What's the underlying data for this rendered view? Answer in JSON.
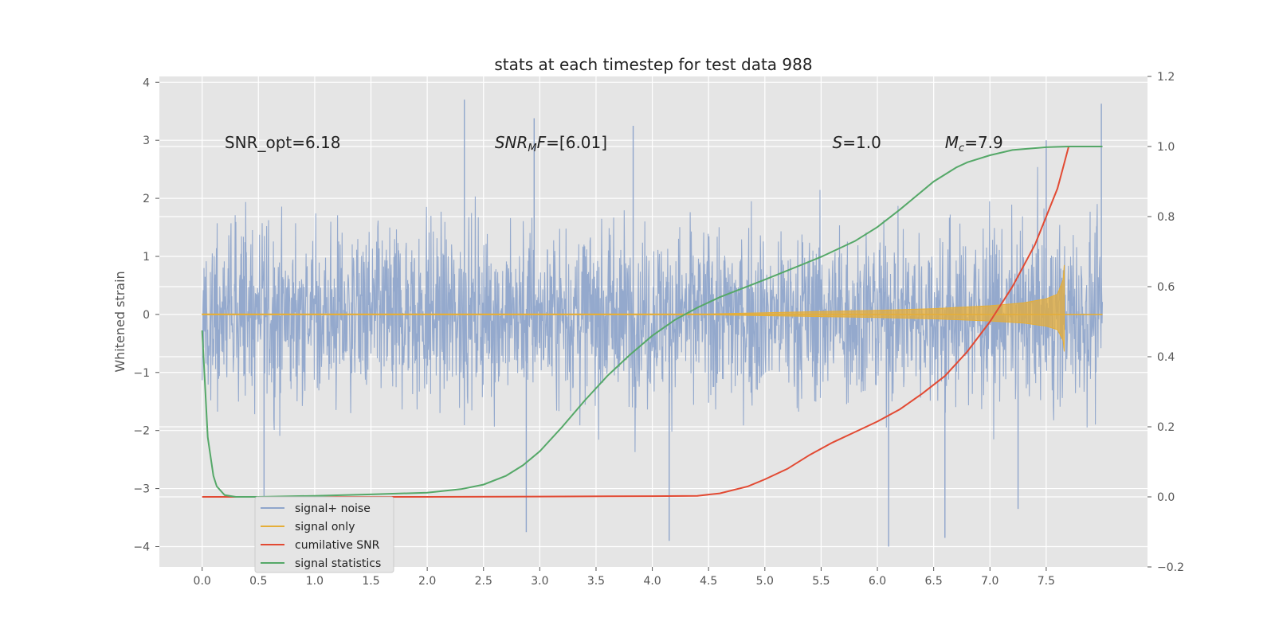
{
  "chart_data": {
    "type": "line",
    "title": "stats at each timestep for test data 988",
    "ylabel": "Whitened strain",
    "ylabel_right": "",
    "xlabel": "",
    "xlim": [
      -0.38,
      8.4
    ],
    "ylim_left": [
      -4.35,
      4.1
    ],
    "ylim_right": [
      -0.2,
      1.2
    ],
    "x_ticks": [
      0.0,
      0.5,
      1.0,
      1.5,
      2.0,
      2.5,
      3.0,
      3.5,
      4.0,
      4.5,
      5.0,
      5.5,
      6.0,
      6.5,
      7.0,
      7.5
    ],
    "x_tick_labels": [
      "0.0",
      "0.5",
      "1.0",
      "1.5",
      "2.0",
      "2.5",
      "3.0",
      "3.5",
      "4.0",
      "4.5",
      "5.0",
      "5.5",
      "6.0",
      "6.5",
      "7.0",
      "7.5"
    ],
    "y_ticks_left": [
      -4,
      -3,
      -2,
      -1,
      0,
      1,
      2,
      3,
      4
    ],
    "y_tick_labels_left": [
      "−4",
      "−3",
      "−2",
      "−1",
      "0",
      "1",
      "2",
      "3",
      "4"
    ],
    "y_ticks_right": [
      -0.2,
      0.0,
      0.2,
      0.4,
      0.6,
      0.8,
      1.0,
      1.2
    ],
    "y_tick_labels_right": [
      "−0.2",
      "0.0",
      "0.2",
      "0.4",
      "0.6",
      "0.8",
      "1.0",
      "1.2"
    ],
    "grid": true,
    "legend_position": "lower-left",
    "annotations": [
      {
        "text": "SNR_opt=6.18",
        "x": 0.2,
        "y": 2.95
      },
      {
        "text": "SNR_MF=[6.01]",
        "x": 2.6,
        "y": 2.95
      },
      {
        "text": "S=1.0",
        "x": 5.6,
        "y": 2.95
      },
      {
        "text": "M_c=7.9",
        "x": 6.6,
        "y": 2.95
      }
    ],
    "series": [
      {
        "name": "signal+ noise",
        "axis": "left",
        "color": "#8fa5cb",
        "kind": "noise",
        "x_range": [
          0.0,
          8.0
        ],
        "envelope_typical": [
          -1.9,
          1.9
        ],
        "extremes": [
          {
            "x": 2.33,
            "y": 3.7
          },
          {
            "x": 2.95,
            "y": 3.38
          },
          {
            "x": 3.83,
            "y": 3.25
          },
          {
            "x": 7.99,
            "y": 3.63
          },
          {
            "x": 4.15,
            "y": -3.9
          },
          {
            "x": 6.1,
            "y": -4.0
          },
          {
            "x": 6.6,
            "y": -3.85
          },
          {
            "x": 2.88,
            "y": -3.75
          },
          {
            "x": 0.55,
            "y": -3.2
          },
          {
            "x": 7.5,
            "y": 3.0
          },
          {
            "x": 7.25,
            "y": -3.35
          }
        ]
      },
      {
        "name": "signal only",
        "axis": "left",
        "color": "#e5ae38",
        "kind": "chirp",
        "x": [
          0.0,
          4.5,
          5.0,
          5.5,
          6.0,
          6.5,
          7.0,
          7.3,
          7.5,
          7.6,
          7.65,
          7.66
        ],
        "amplitude": [
          0.01,
          0.01,
          0.03,
          0.05,
          0.07,
          0.1,
          0.15,
          0.2,
          0.27,
          0.35,
          0.6,
          0.85
        ]
      },
      {
        "name": "cumilative SNR",
        "axis": "right",
        "color": "#e24a33",
        "x": [
          0.0,
          1.0,
          2.0,
          3.0,
          4.0,
          4.4,
          4.6,
          4.85,
          5.0,
          5.2,
          5.4,
          5.6,
          5.8,
          6.0,
          6.2,
          6.4,
          6.6,
          6.8,
          7.0,
          7.2,
          7.4,
          7.5,
          7.6,
          7.65,
          7.7,
          8.0
        ],
        "y": [
          0.0,
          0.0,
          0.0,
          0.001,
          0.002,
          0.003,
          0.01,
          0.03,
          0.05,
          0.08,
          0.12,
          0.155,
          0.185,
          0.215,
          0.25,
          0.295,
          0.345,
          0.415,
          0.5,
          0.6,
          0.72,
          0.8,
          0.88,
          0.94,
          1.0,
          1.0
        ]
      },
      {
        "name": "signal statistics",
        "axis": "right",
        "color": "#55a868",
        "x": [
          0.0,
          0.05,
          0.1,
          0.13,
          0.2,
          0.3,
          0.5,
          1.0,
          1.5,
          2.0,
          2.3,
          2.5,
          2.7,
          2.85,
          3.0,
          3.2,
          3.4,
          3.6,
          3.8,
          4.0,
          4.2,
          4.4,
          4.6,
          5.0,
          5.5,
          5.8,
          6.0,
          6.2,
          6.5,
          6.7,
          6.8,
          7.0,
          7.2,
          7.5,
          7.7,
          8.0
        ],
        "y": [
          0.475,
          0.17,
          0.06,
          0.03,
          0.005,
          0.0,
          0.0,
          0.003,
          0.007,
          0.012,
          0.022,
          0.035,
          0.06,
          0.09,
          0.13,
          0.2,
          0.275,
          0.345,
          0.405,
          0.46,
          0.505,
          0.54,
          0.57,
          0.62,
          0.685,
          0.73,
          0.77,
          0.82,
          0.9,
          0.94,
          0.955,
          0.975,
          0.99,
          0.998,
          1.0,
          1.0
        ]
      }
    ]
  }
}
